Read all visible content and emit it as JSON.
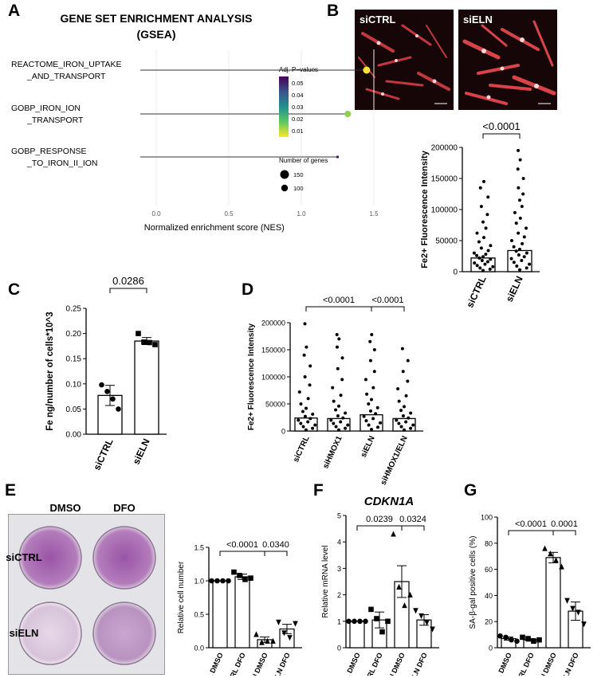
{
  "panels": {
    "A": {
      "label": "A",
      "title_line1": "GENE SET ENRICHMENT ANALYSIS",
      "title_line2": "(GSEA)",
      "xlabel": "Normalized enrichment score (NES)",
      "xticks": [
        "0.0",
        "0.5",
        "1.0",
        "1.5"
      ],
      "terms": [
        {
          "line1": "REACTOME_IRON_UPTAKE",
          "line2": "_AND_TRANSPORT",
          "nes": 1.45,
          "padj": 0.005,
          "genes": 150,
          "color": "#f5e23a"
        },
        {
          "line1": "GOBP_IRON_ION",
          "line2": "_TRANSPORT",
          "nes": 1.32,
          "padj": 0.012,
          "genes": 130,
          "color": "#8fd14a"
        },
        {
          "line1": "GOBP_RESPONSE",
          "line2": "_TO_IRON_II_ION",
          "nes": 1.25,
          "padj": 0.058,
          "genes": 40,
          "color": "#44135e"
        }
      ],
      "legend_color_title": "Adj. P−values",
      "legend_color_ticks": [
        "0.05",
        "0.04",
        "0.03",
        "0.02",
        "0.01"
      ],
      "legend_size_title": "Number of genes",
      "legend_size_items": [
        "150",
        "100"
      ]
    },
    "B": {
      "label": "B",
      "images": [
        "siCTRL",
        "siELN"
      ],
      "pvalue": "<0.0001",
      "ylabel": "Fe2+ Fluorescence Intensity",
      "yticks": [
        "0",
        "50000",
        "100000",
        "150000",
        "200000"
      ],
      "categories": [
        "siCTRL",
        "siELN"
      ],
      "bar_values": [
        22000,
        34000
      ]
    },
    "C": {
      "label": "C",
      "ylabel": "Fe ng/number of cells*10^3",
      "yticks": [
        "0.00",
        "0.05",
        "0.10",
        "0.15",
        "0.20",
        "0.25"
      ],
      "pvalue": "0.0286",
      "categories": [
        "siCTRL",
        "siELN"
      ]
    },
    "D": {
      "label": "D",
      "ylabel": "Fe2+ Fluorescence Intensity",
      "yticks": [
        "0",
        "50000",
        "100000",
        "150000",
        "200000"
      ],
      "pvalues": [
        "<0.0001",
        "<0.0001"
      ],
      "categories": [
        "siCTRL",
        "siHMOX1",
        "siELN",
        "siHMOX1/ELN"
      ]
    },
    "E": {
      "label": "E",
      "plate_cols": [
        "DMSO",
        "DFO"
      ],
      "plate_rows": [
        "siCTRL",
        "siELN"
      ],
      "ylabel": "Relative cell number",
      "yticks": [
        "0.0",
        "0.5",
        "1.0",
        "1.5"
      ],
      "pvalues": [
        "<0.0001",
        "0.0340"
      ],
      "categories": [
        "siCTRL DMSO",
        "siCTRL DFO",
        "siELN DMSO",
        "siELN DFO"
      ]
    },
    "F": {
      "label": "F",
      "title": "CDKN1A",
      "ylabel": "Relative mRNA level",
      "yticks": [
        "0",
        "1",
        "2",
        "3",
        "4",
        "5"
      ],
      "pvalues": [
        "0.0239",
        "0.0324"
      ],
      "categories": [
        "siCTRL DMSO",
        "siCTRL DFO",
        "siELN DMSO",
        "siELN DFO"
      ]
    },
    "G": {
      "label": "G",
      "ylabel": "SA-β-gal positive cells (%)",
      "yticks": [
        "0",
        "20",
        "40",
        "60",
        "80",
        "100"
      ],
      "pvalues": [
        "<0.0001",
        "0.0001"
      ],
      "categories": [
        "siCTRL DMSO",
        "siCTRL DFO",
        "siELN DMSO",
        "siELN DFO"
      ]
    }
  },
  "chart_data": [
    {
      "type": "scatter",
      "panel": "A",
      "x": [
        1.45,
        1.32,
        1.25
      ],
      "categories": [
        "REACTOME_IRON_UPTAKE_AND_TRANSPORT",
        "GOBP_IRON_ION_TRANSPORT",
        "GOBP_RESPONSE_TO_IRON_II_ION"
      ],
      "xlim": [
        -0.3,
        1.65
      ]
    },
    {
      "type": "bar",
      "panel": "B",
      "categories": [
        "siCTRL",
        "siELN"
      ],
      "values": [
        22000,
        34000
      ],
      "ylim": [
        0,
        200000
      ],
      "points": [
        [
          2000,
          4000,
          6000,
          8000,
          10000,
          12000,
          14000,
          16000,
          18000,
          20000,
          22000,
          24000,
          26000,
          28000,
          30000,
          34000,
          38000,
          42000,
          48000,
          55000,
          62000,
          70000,
          80000,
          92000,
          105000,
          120000,
          135000,
          145000
        ],
        [
          3000,
          6000,
          9000,
          12000,
          15000,
          18000,
          21000,
          24000,
          27000,
          30000,
          33000,
          36000,
          40000,
          45000,
          50000,
          56000,
          62000,
          70000,
          78000,
          86000,
          95000,
          105000,
          115000,
          125000,
          135000,
          150000,
          165000,
          180000,
          195000
        ]
      ]
    },
    {
      "type": "bar",
      "panel": "C",
      "categories": [
        "siCTRL",
        "siELN"
      ],
      "values": [
        0.077,
        0.185
      ],
      "errors": [
        0.02,
        0.007
      ],
      "ylim": [
        0,
        0.25
      ],
      "points": [
        [
          0.098,
          0.085,
          0.07,
          0.05
        ],
        [
          0.2,
          0.183,
          0.182,
          0.178
        ]
      ]
    },
    {
      "type": "bar",
      "panel": "D",
      "categories": [
        "siCTRL",
        "siHMOX1",
        "siELN",
        "siHMOX1/ELN"
      ],
      "values": [
        24000,
        23000,
        30000,
        23000
      ],
      "ylim": [
        0,
        200000
      ],
      "points": [
        [
          2000,
          5000,
          8000,
          11000,
          14000,
          17000,
          20000,
          23000,
          27000,
          31000,
          36000,
          42000,
          50000,
          60000,
          72000,
          85000,
          100000,
          120000,
          140000,
          155000,
          198000
        ],
        [
          2000,
          5000,
          8000,
          11000,
          14000,
          17000,
          20000,
          24000,
          28000,
          33000,
          39000,
          46000,
          55000,
          66000,
          80000,
          95000,
          115000,
          135000,
          155000,
          170000,
          178000
        ],
        [
          3000,
          7000,
          11000,
          15000,
          19000,
          23000,
          27000,
          32000,
          37000,
          43000,
          50000,
          58000,
          68000,
          80000,
          95000,
          110000,
          130000,
          150000,
          165000,
          178000
        ],
        [
          2000,
          5000,
          8000,
          11000,
          14000,
          17000,
          20000,
          24000,
          28000,
          33000,
          38000,
          45000,
          55000,
          65000,
          78000,
          92000,
          110000,
          130000,
          152000
        ]
      ]
    },
    {
      "type": "bar",
      "panel": "E",
      "categories": [
        "siCTRL DMSO",
        "siCTRL DFO",
        "siELN DMSO",
        "siELN DFO"
      ],
      "values": [
        1.0,
        1.06,
        0.12,
        0.28
      ],
      "errors": [
        0.0,
        0.04,
        0.04,
        0.07
      ],
      "ylim": [
        0,
        1.5
      ],
      "points": [
        [
          1.0,
          1.0,
          1.0,
          1.0
        ],
        [
          1.13,
          1.08,
          1.02,
          1.04
        ],
        [
          0.2,
          0.08,
          0.1,
          0.1
        ],
        [
          0.38,
          0.22,
          0.15,
          0.36
        ]
      ]
    },
    {
      "type": "bar",
      "panel": "F",
      "categories": [
        "siCTRL DMSO",
        "siCTRL DFO",
        "siELN DMSO",
        "siELN DFO"
      ],
      "values": [
        1.0,
        1.05,
        2.5,
        1.05
      ],
      "errors": [
        0.0,
        0.3,
        0.6,
        0.2
      ],
      "ylim": [
        0,
        5
      ],
      "points": [
        [
          1.0,
          1.0,
          1.0,
          1.0
        ],
        [
          1.45,
          1.1,
          0.6,
          1.0
        ],
        [
          4.3,
          2.3,
          1.6,
          2.0
        ],
        [
          1.4,
          1.2,
          0.95,
          0.7
        ]
      ]
    },
    {
      "type": "bar",
      "panel": "G",
      "categories": [
        "siCTRL DMSO",
        "siCTRL DFO",
        "siELN DMSO",
        "siELN DFO"
      ],
      "values": [
        7,
        6,
        69,
        28
      ],
      "errors": [
        1.2,
        1.0,
        4,
        7
      ],
      "ylim": [
        0,
        100
      ],
      "points": [
        [
          9,
          8,
          6,
          5
        ],
        [
          8,
          7,
          5,
          6
        ],
        [
          76,
          72,
          67,
          62
        ],
        [
          36,
          30,
          27,
          18
        ]
      ]
    }
  ]
}
